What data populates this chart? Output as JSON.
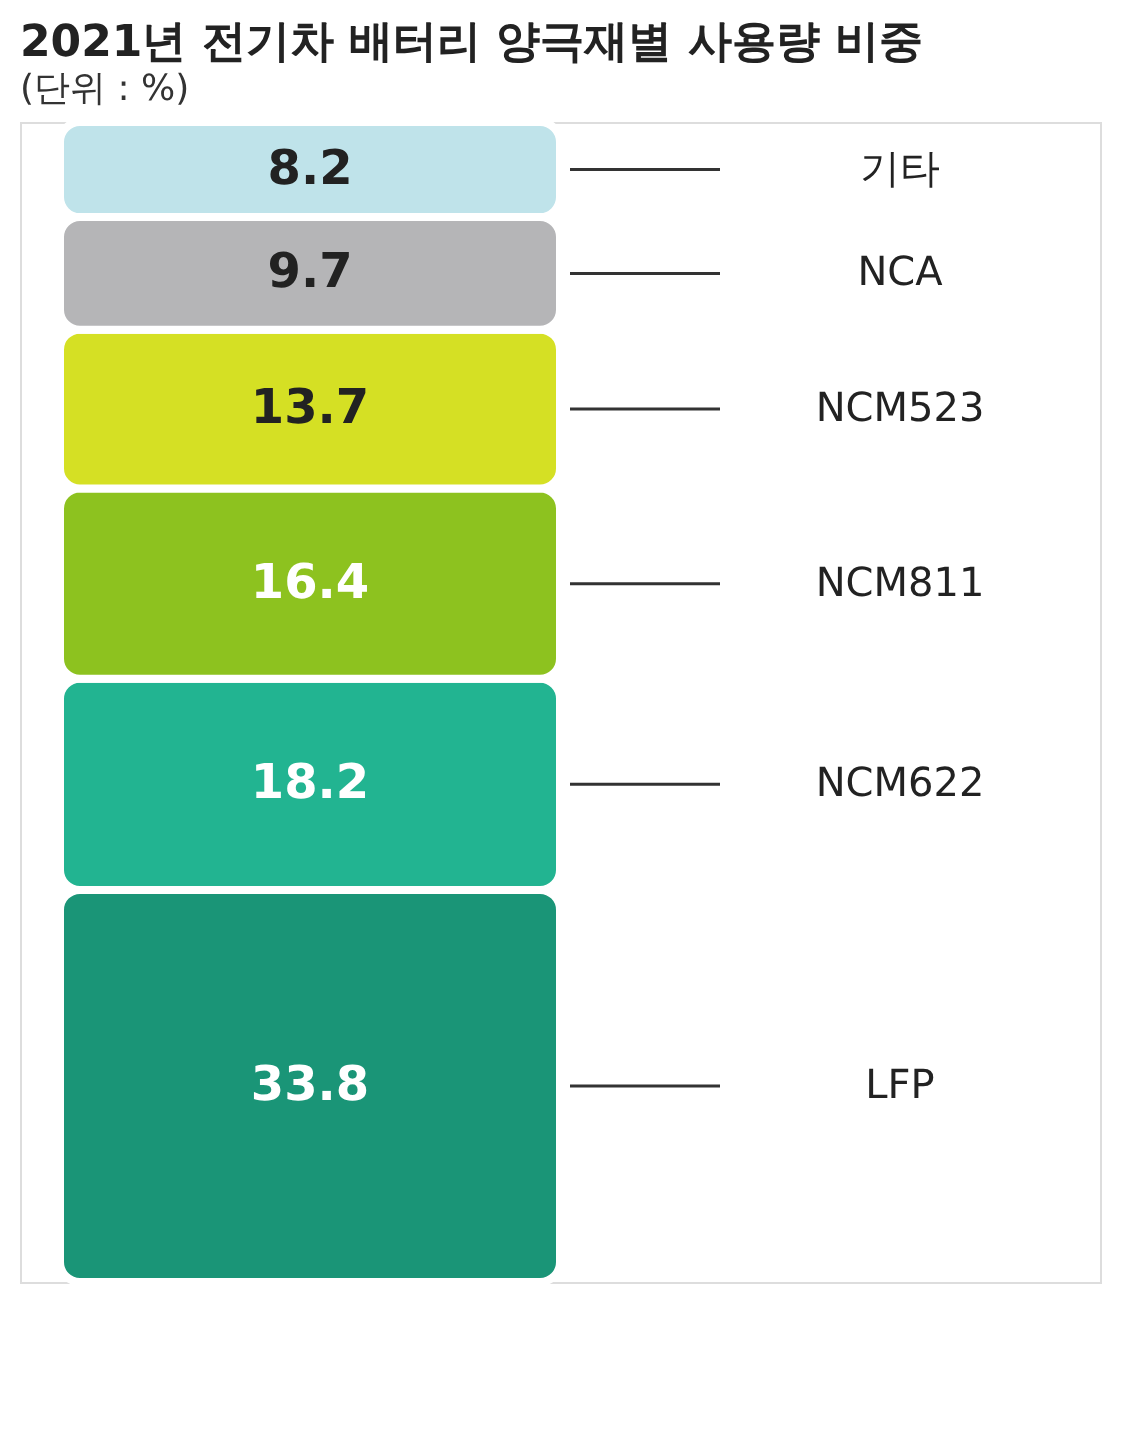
{
  "chart_data": {
    "type": "bar",
    "title": "2021년 전기차 배터리 양극재별 사용량 비중",
    "subtitle": "(단위 : %)",
    "stacked": true,
    "data_labels": true,
    "categories": [
      null
    ],
    "series": [
      {
        "name": "LFP",
        "color": "#1a9577",
        "values": [
          33.8
        ]
      },
      {
        "name": "NCM622",
        "color": "#22b491",
        "values": [
          18.2
        ]
      },
      {
        "name": "NCM811",
        "color": "#8dc21f",
        "values": [
          16.4
        ]
      },
      {
        "name": "NCM523",
        "color": "#d5e024",
        "values": [
          13.7
        ]
      },
      {
        "name": "NCA",
        "color": "#b5b5b7",
        "values": [
          9.7
        ]
      },
      {
        "name": "기타",
        "color": "#bfe3ea",
        "values": [
          8.2
        ]
      }
    ]
  }
}
